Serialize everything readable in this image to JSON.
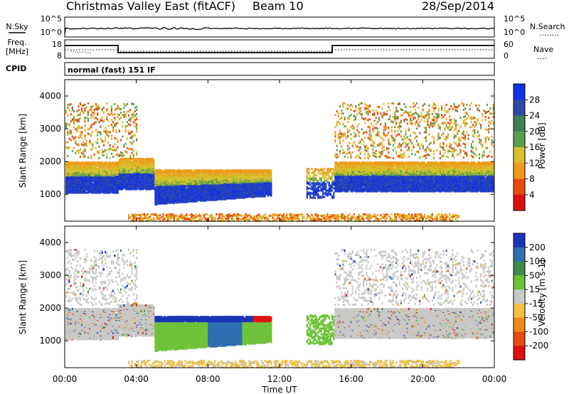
{
  "header": {
    "title": "Christmas Valley East (fitACF)",
    "beam": "Beam 10",
    "date": "28/Sep/2014"
  },
  "strips": {
    "nsky": {
      "label": "N.Sky",
      "ticks": [
        "10^5",
        "10^0"
      ],
      "right_ticks": [
        "10^5",
        "10^0"
      ],
      "right_label": "N.Search",
      "right_line": "........"
    },
    "freq": {
      "label_1": "Freq.",
      "label_2": "[MHz]",
      "ticks": [
        "18",
        "8"
      ],
      "right_ticks": [
        "60",
        "0"
      ],
      "right_label": "Nave",
      "right_line": "...."
    },
    "cpid": {
      "label": "CPID",
      "value": "normal (fast) 151 IF"
    }
  },
  "chart_data": [
    {
      "type": "heatmap",
      "name": "power-panel",
      "ylabel": "Slant Range [km]",
      "y_ticks": [
        "4000",
        "3000",
        "2000",
        "1000"
      ],
      "y_tick_values": [
        4000,
        3000,
        2000,
        1000
      ],
      "ylim": [
        180,
        4500
      ],
      "xlim": [
        0,
        24
      ],
      "colorbar": {
        "label": "Power [dB]",
        "ticks": [
          "28",
          "24",
          "20",
          "16",
          "12",
          "8",
          "4"
        ],
        "colors": [
          "#1030e8",
          "#2f4aa6",
          "#3e7f56",
          "#5aa04c",
          "#d6c02c",
          "#f09a1c",
          "#ea4a12",
          "#e01010"
        ]
      }
    },
    {
      "type": "heatmap",
      "name": "velocity-panel",
      "ylabel": "Slant Range [km]",
      "y_ticks": [
        "4000",
        "3000",
        "2000",
        "1000"
      ],
      "y_tick_values": [
        4000,
        3000,
        2000,
        1000
      ],
      "ylim": [
        180,
        4500
      ],
      "xlim": [
        0,
        24
      ],
      "colorbar": {
        "label": "Velocity [m s-1]",
        "ticks": [
          "200",
          "100",
          "50",
          "15",
          "-15",
          "-50",
          "-100",
          "-200"
        ],
        "colors": [
          "#1c34b8",
          "#2d6fb0",
          "#3e8c4a",
          "#6ec23a",
          "#c8c8c8",
          "#f0c040",
          "#f08a1a",
          "#e84a14",
          "#e01010"
        ]
      }
    }
  ],
  "x_axis": {
    "ticks": [
      "00:00",
      "04:00",
      "08:00",
      "12:00",
      "16:00",
      "20:00",
      "00:00"
    ],
    "tick_hours": [
      0,
      4,
      8,
      12,
      16,
      20,
      24
    ],
    "label": "Time UT"
  }
}
